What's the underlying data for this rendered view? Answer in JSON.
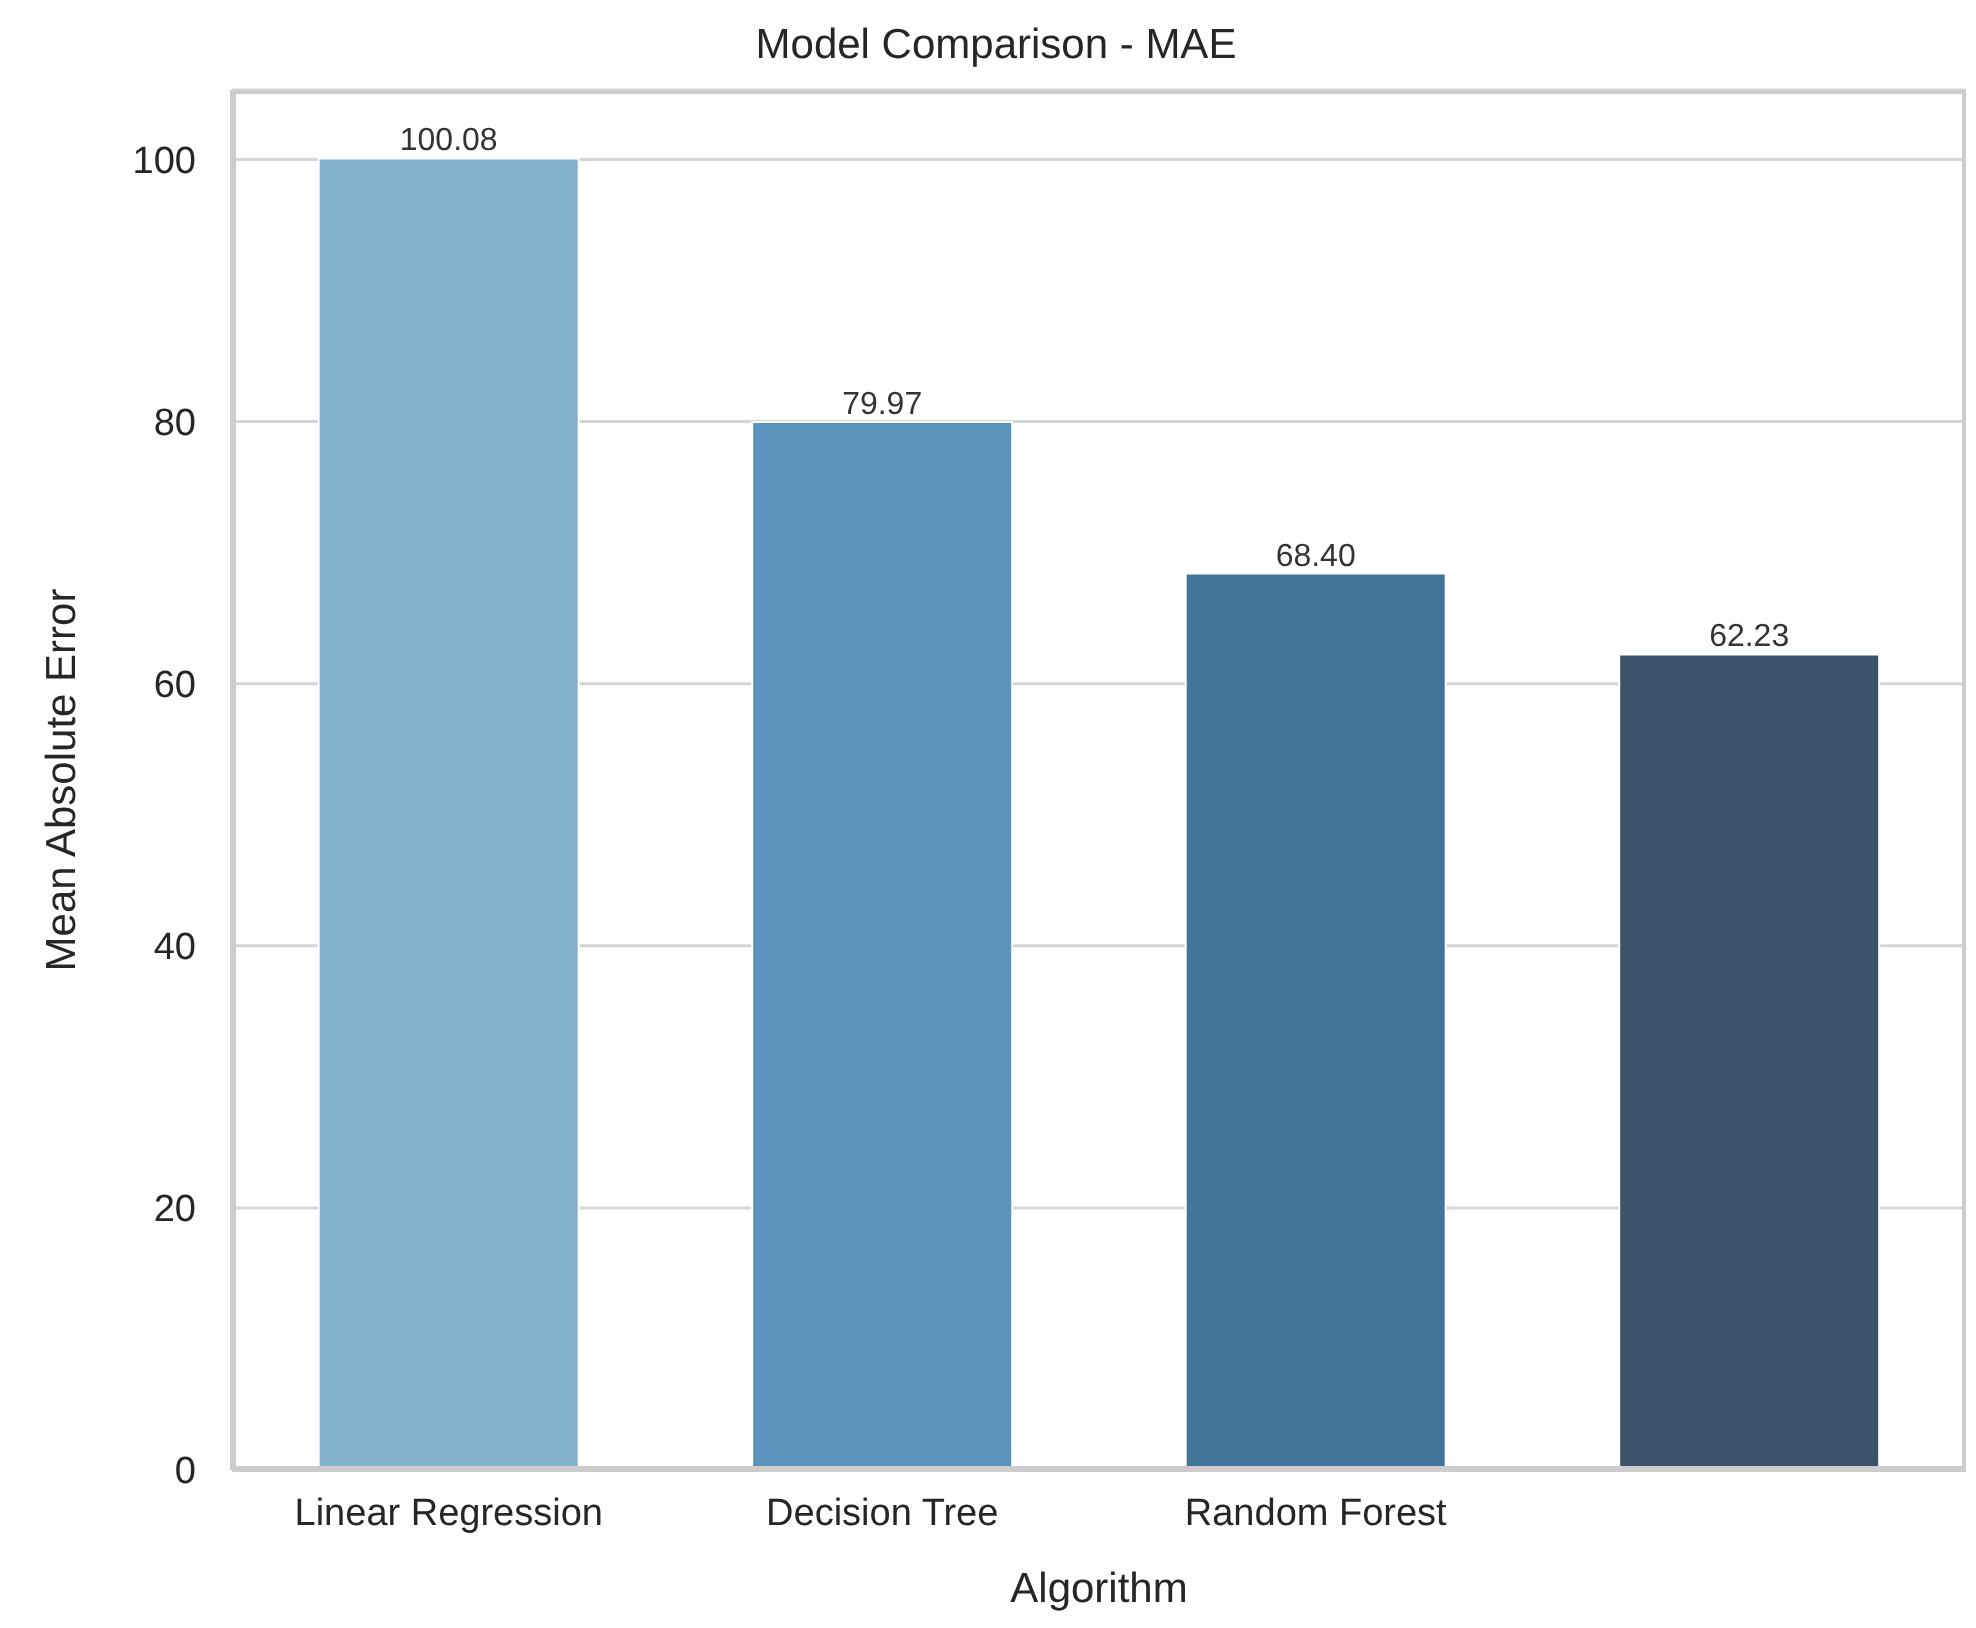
{
  "chart_data": {
    "type": "bar",
    "title": "Model Comparison - MAE",
    "xlabel": "Algorithm",
    "ylabel": "Mean Absolute Error",
    "categories": [
      "Linear Regression",
      "Decision Tree",
      "Random Forest",
      null
    ],
    "values": [
      100.08,
      79.97,
      68.4,
      62.23
    ],
    "colors": [
      "#82b0cd",
      "#5a93bc",
      "#42759a",
      "#3b5268"
    ],
    "value_labels": [
      "100.08",
      "79.97",
      "68.40",
      "62.23"
    ],
    "ylim": [
      0,
      105.3
    ],
    "yticks": [
      0,
      20,
      40,
      60,
      80,
      100
    ],
    "grid": "y"
  }
}
